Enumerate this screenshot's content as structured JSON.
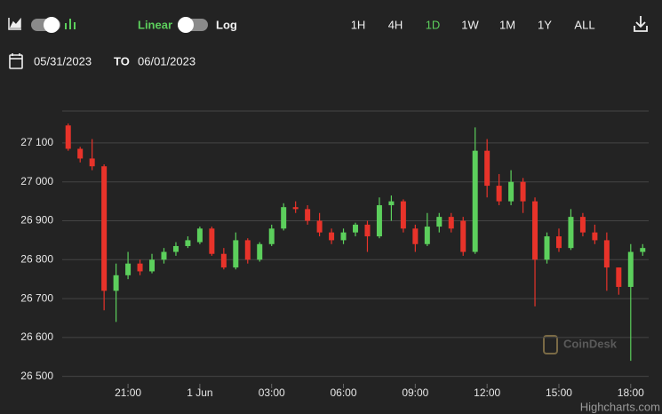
{
  "toolbar": {
    "scale_labels": [
      "Linear",
      "Log"
    ],
    "ranges": [
      "1H",
      "4H",
      "1D",
      "1W",
      "1M",
      "1Y",
      "ALL"
    ],
    "active_range": "1D"
  },
  "date_range": {
    "from": "05/31/2023",
    "separator": "TO",
    "to": "06/01/2023"
  },
  "watermark": "CoinDesk",
  "credit": "Highcharts.com",
  "chart_data": {
    "type": "candlestick",
    "log_scale": false,
    "grid": true,
    "up_color": "#5ccf5c",
    "down_color": "#e8332a",
    "x": [
      18.5,
      19,
      19.5,
      20,
      20.5,
      21,
      21.5,
      22,
      22.5,
      23,
      23.5,
      24,
      24.5,
      25,
      25.5,
      26,
      26.5,
      27,
      27.5,
      28,
      28.5,
      29,
      29.5,
      30,
      30.5,
      31,
      31.5,
      32,
      32.5,
      33,
      33.5,
      34,
      34.5,
      35,
      35.5,
      36,
      36.5,
      37,
      37.5,
      38,
      38.5,
      39,
      39.5,
      40,
      40.5,
      41,
      41.5,
      42,
      42.5
    ],
    "open": [
      27145,
      27085,
      27060,
      27040,
      26720,
      26760,
      26790,
      26770,
      26800,
      26820,
      26835,
      26845,
      26880,
      26815,
      26780,
      26850,
      26800,
      26840,
      26880,
      26935,
      26930,
      26900,
      26870,
      26850,
      26870,
      26890,
      26860,
      26940,
      26950,
      26880,
      26840,
      26885,
      26910,
      26900,
      26820,
      27080,
      26990,
      26950,
      27000,
      26950,
      26800,
      26860,
      26830,
      26910,
      26870,
      26850,
      26780,
      26730,
      26820
    ],
    "high": [
      27150,
      27090,
      27110,
      27045,
      26790,
      26820,
      26800,
      26815,
      26830,
      26845,
      26860,
      26885,
      26885,
      26830,
      26870,
      26855,
      26845,
      26890,
      26945,
      26950,
      26940,
      26920,
      26880,
      26880,
      26895,
      26900,
      26960,
      26965,
      26955,
      26890,
      26920,
      26920,
      26920,
      26910,
      27140,
      27110,
      27020,
      27030,
      27010,
      26960,
      26870,
      26880,
      26930,
      26920,
      26890,
      26870,
      26780,
      26840,
      26840
    ],
    "low": [
      27080,
      27050,
      27030,
      26670,
      26640,
      26750,
      26760,
      26765,
      26790,
      26810,
      26830,
      26840,
      26810,
      26775,
      26775,
      26790,
      26795,
      26835,
      26875,
      26920,
      26890,
      26860,
      26840,
      26840,
      26860,
      26820,
      26855,
      26900,
      26870,
      26820,
      26835,
      26870,
      26870,
      26810,
      26815,
      26960,
      26940,
      26940,
      26920,
      26680,
      26790,
      26820,
      26825,
      26860,
      26840,
      26720,
      26710,
      26540,
      26810
    ],
    "close": [
      27085,
      27060,
      27040,
      26720,
      26760,
      26790,
      26770,
      26800,
      26820,
      26835,
      26850,
      26880,
      26815,
      26780,
      26850,
      26800,
      26840,
      26880,
      26935,
      26930,
      26900,
      26870,
      26850,
      26870,
      26890,
      26860,
      26940,
      26950,
      26880,
      26840,
      26885,
      26910,
      26880,
      26820,
      27080,
      26990,
      26950,
      27000,
      26950,
      26800,
      26860,
      26830,
      26910,
      26870,
      26850,
      26780,
      26730,
      26820,
      26830
    ],
    "xlim": [
      18.25,
      42.75
    ],
    "ylim": [
      26481,
      27182
    ],
    "xticks": [
      {
        "value": 21,
        "label": "21:00"
      },
      {
        "value": 24,
        "label": "1 Jun"
      },
      {
        "value": 27,
        "label": "03:00"
      },
      {
        "value": 30,
        "label": "06:00"
      },
      {
        "value": 33,
        "label": "09:00"
      },
      {
        "value": 36,
        "label": "12:00"
      },
      {
        "value": 39,
        "label": "15:00"
      },
      {
        "value": 42,
        "label": "18:00"
      }
    ],
    "yticks": [
      {
        "value": 26500,
        "label": "26 500"
      },
      {
        "value": 26600,
        "label": "26 600"
      },
      {
        "value": 26700,
        "label": "26 700"
      },
      {
        "value": 26800,
        "label": "26 800"
      },
      {
        "value": 26900,
        "label": "26 900"
      },
      {
        "value": 27000,
        "label": "27 000"
      },
      {
        "value": 27100,
        "label": "27 100"
      }
    ]
  }
}
